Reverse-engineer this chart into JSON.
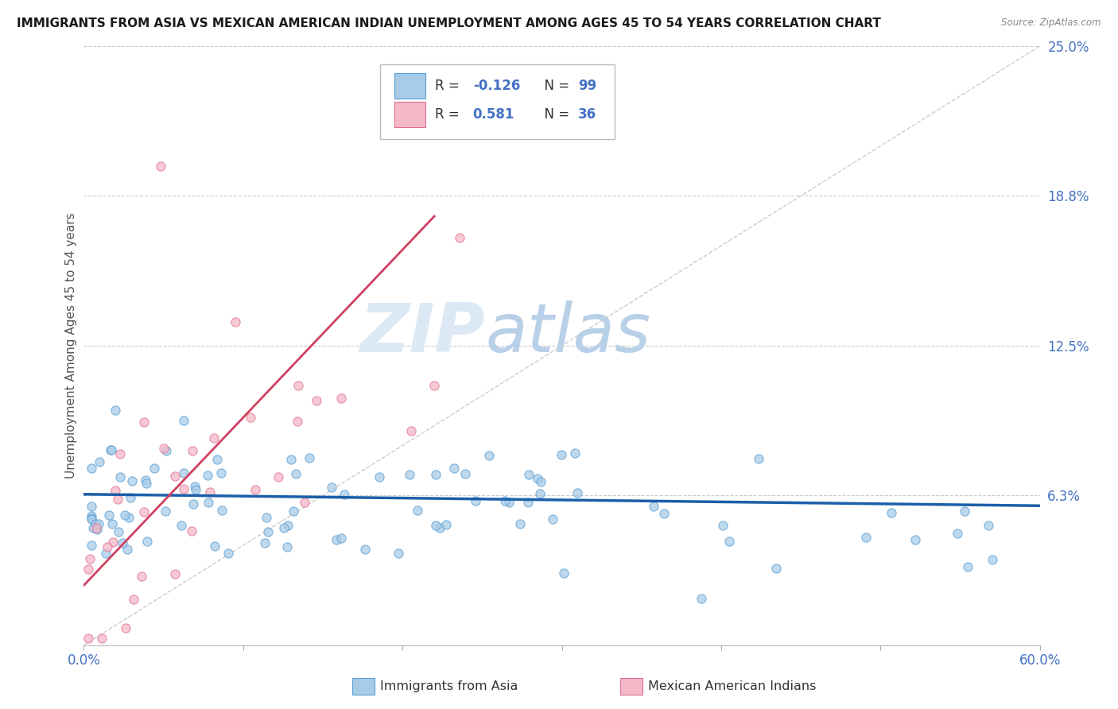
{
  "title": "IMMIGRANTS FROM ASIA VS MEXICAN AMERICAN INDIAN UNEMPLOYMENT AMONG AGES 45 TO 54 YEARS CORRELATION CHART",
  "source": "Source: ZipAtlas.com",
  "ylabel": "Unemployment Among Ages 45 to 54 years",
  "xlim": [
    0.0,
    0.6
  ],
  "ylim": [
    0.0,
    0.25
  ],
  "yticks": [
    0.0,
    0.0625,
    0.125,
    0.1875,
    0.25
  ],
  "ytick_labels": [
    "6.3%",
    "12.5%",
    "18.8%",
    "25.0%"
  ],
  "xtick_labels": [
    "0.0%",
    "",
    "",
    "",
    "",
    "",
    "60.0%"
  ],
  "series1_color": "#a8cce8",
  "series2_color": "#f4b8c8",
  "series1_edge": "#5a9fd4",
  "series2_edge": "#e07090",
  "trendline1_color": "#1a5fa8",
  "trendline2_color": "#d04060",
  "tick_label_color": "#4472c4",
  "grid_color": "#cccccc",
  "watermark_zip_color": "#d8e8f4",
  "watermark_atlas_color": "#b0cce0",
  "background_color": "#ffffff",
  "title_fontsize": 11,
  "legend_label1": "Immigrants from Asia",
  "legend_label2": "Mexican American Indians"
}
